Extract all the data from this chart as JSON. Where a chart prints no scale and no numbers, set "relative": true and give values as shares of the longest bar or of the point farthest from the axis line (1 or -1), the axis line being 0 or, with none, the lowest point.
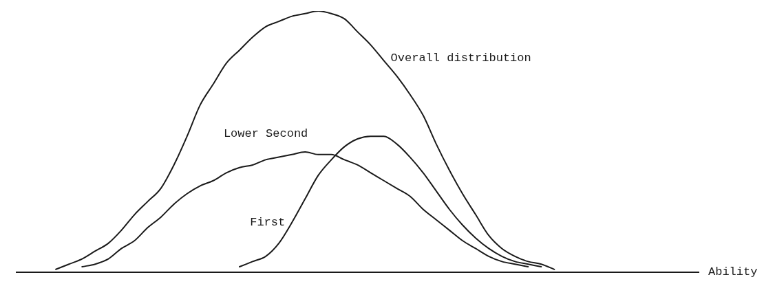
{
  "chart_data": {
    "type": "line",
    "relative": true,
    "xlabel": "Ability",
    "legend": false,
    "grid": false,
    "marker": "none",
    "line_style": "solid",
    "categories": [
      null,
      null,
      null,
      null,
      null,
      null,
      null,
      null,
      null,
      null,
      null,
      null,
      null,
      null,
      null,
      null,
      null,
      null,
      null,
      null,
      null,
      null,
      null,
      null,
      null,
      null,
      null,
      null,
      null,
      null,
      null,
      null,
      null,
      null,
      null,
      null,
      null,
      null,
      null,
      null,
      null,
      null,
      null,
      null,
      null,
      null,
      null,
      null,
      null,
      null,
      null,
      null,
      null
    ],
    "series": [
      {
        "name": "Overall distribution",
        "color": "#1a1a1a",
        "values": [
          null,
          null,
          null,
          0.01,
          0.03,
          0.05,
          0.08,
          0.11,
          0.16,
          0.22,
          0.27,
          0.32,
          0.41,
          0.52,
          0.64,
          0.72,
          0.8,
          0.85,
          0.9,
          0.94,
          0.96,
          0.98,
          0.99,
          1,
          0.99,
          0.97,
          0.92,
          0.87,
          0.81,
          0.75,
          0.68,
          0.6,
          0.49,
          0.39,
          0.3,
          0.22,
          0.14,
          0.09,
          0.06,
          0.04,
          0.03,
          0.01,
          null,
          null,
          null,
          null,
          null,
          null,
          null,
          null,
          null,
          null,
          null
        ]
      },
      {
        "name": "Lower Second",
        "color": "#1a1a1a",
        "values": [
          null,
          null,
          null,
          null,
          null,
          0.02,
          0.03,
          0.05,
          0.09,
          0.12,
          0.17,
          0.21,
          0.26,
          0.3,
          0.33,
          0.35,
          0.38,
          0.4,
          0.41,
          0.43,
          0.44,
          0.45,
          0.46,
          0.45,
          0.45,
          0.43,
          0.41,
          0.38,
          0.35,
          0.32,
          0.29,
          0.24,
          0.2,
          0.16,
          0.12,
          0.09,
          0.06,
          0.04,
          0.03,
          0.02,
          null,
          null,
          null,
          null,
          null,
          null,
          null,
          null,
          null,
          null,
          null,
          null,
          null
        ]
      },
      {
        "name": "First",
        "color": "#1a1a1a",
        "values": [
          null,
          null,
          null,
          null,
          null,
          null,
          null,
          null,
          null,
          null,
          null,
          null,
          null,
          null,
          null,
          null,
          null,
          0.02,
          0.04,
          0.06,
          0.11,
          0.19,
          0.28,
          0.37,
          0.43,
          0.48,
          0.51,
          0.52,
          0.52,
          0.49,
          0.44,
          0.38,
          0.31,
          0.24,
          0.18,
          0.13,
          0.09,
          0.06,
          0.04,
          0.03,
          0.02,
          null,
          null,
          null,
          null,
          null,
          null,
          null,
          null,
          null,
          null,
          null,
          null
        ]
      }
    ]
  }
}
